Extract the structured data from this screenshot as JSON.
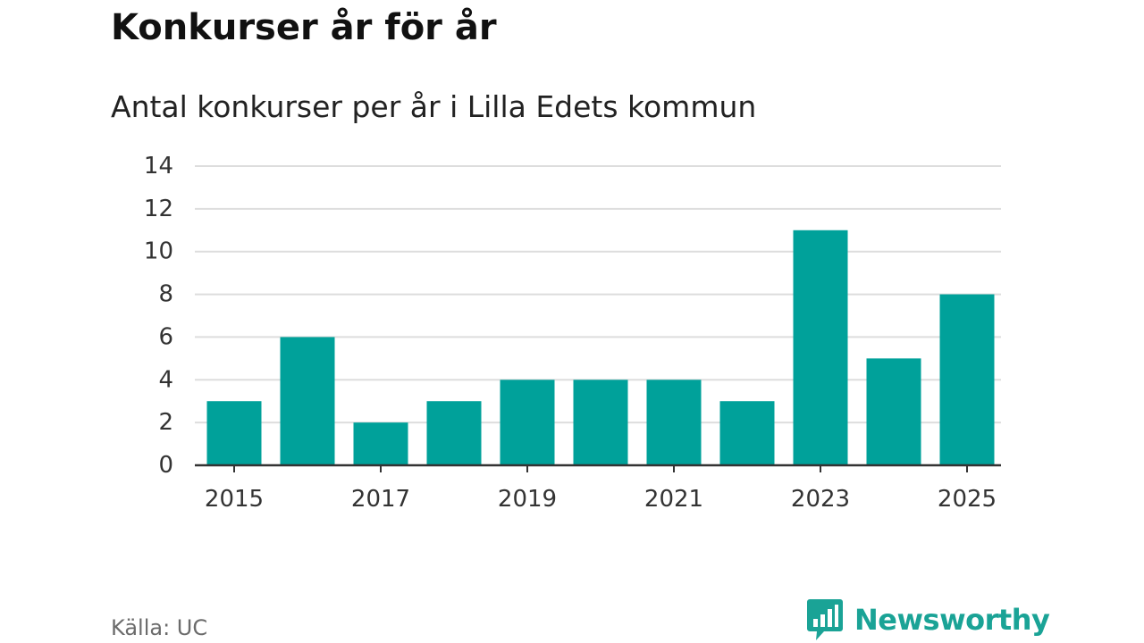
{
  "header": {
    "title": "Konkurser år för år",
    "subtitle": "Antal konkurser per år i Lilla Edets kommun"
  },
  "footer": {
    "source": "Källa: UC",
    "brand": "Newsworthy",
    "brand_icon": "bar-chart-speech-bubble-icon"
  },
  "colors": {
    "bar": "#00a19a",
    "grid": "#dddddd",
    "axis": "#333333",
    "brand": "#1aa396"
  },
  "chart_data": {
    "type": "bar",
    "title": "Konkurser år för år",
    "subtitle": "Antal konkurser per år i Lilla Edets kommun",
    "xlabel": "",
    "ylabel": "",
    "categories": [
      "2015",
      "2016",
      "2017",
      "2018",
      "2019",
      "2020",
      "2021",
      "2022",
      "2023",
      "2024",
      "2025"
    ],
    "values": [
      3,
      6,
      2,
      3,
      4,
      4,
      4,
      3,
      11,
      5,
      8
    ],
    "x_tick_labels": [
      "2015",
      "2017",
      "2019",
      "2021",
      "2023",
      "2025"
    ],
    "y_ticks": [
      0,
      2,
      4,
      6,
      8,
      10,
      12,
      14
    ],
    "ylim": [
      0,
      14
    ],
    "grid": true,
    "legend": "none"
  }
}
